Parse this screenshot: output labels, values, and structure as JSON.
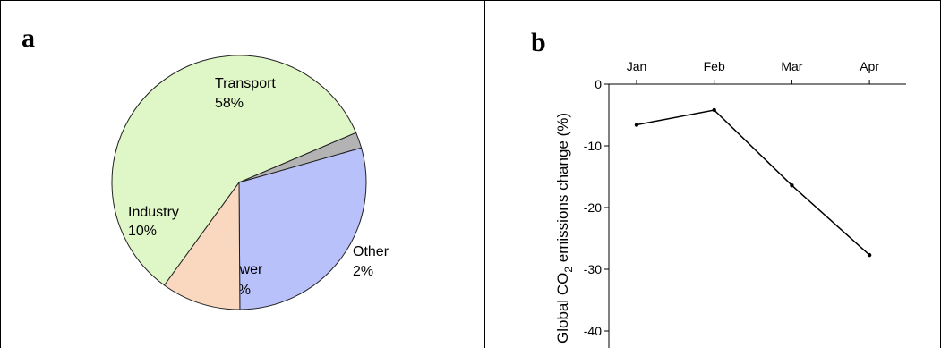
{
  "panels": {
    "a_label": "a",
    "b_label": "b"
  },
  "chart_data": [
    {
      "type": "pie",
      "slices": [
        {
          "label": "Transport",
          "value": 58,
          "value_label": "58%",
          "color": "#dff6c6"
        },
        {
          "label": "Other",
          "value": 2,
          "value_label": "2%",
          "color": "#b3b3b3"
        },
        {
          "label": "Power",
          "value": 29,
          "value_label": "29%",
          "color": "#b9c1fb"
        },
        {
          "label": "Industry",
          "value": 10,
          "value_label": "10%",
          "color": "#f9d8bf"
        }
      ]
    },
    {
      "type": "line",
      "x": [
        "Jan",
        "Feb",
        "Mar",
        "Apr"
      ],
      "series": [
        {
          "values": [
            -6.6,
            -4.2,
            -16.4,
            -27.7
          ],
          "color": "#000000"
        }
      ],
      "ylabel": "Global CO₂ emissions change (%)",
      "ylabel_main": "Global CO",
      "ylabel_sub": "2",
      "ylabel_rest": " emissions change (%)",
      "ylim": [
        -40,
        0
      ],
      "yticks": [
        0,
        -10,
        -20,
        -30,
        -40
      ],
      "ytick_labels": [
        "0",
        "-10",
        "-20",
        "-30",
        "-40"
      ],
      "xaxis_position": "top",
      "grid": false
    }
  ]
}
